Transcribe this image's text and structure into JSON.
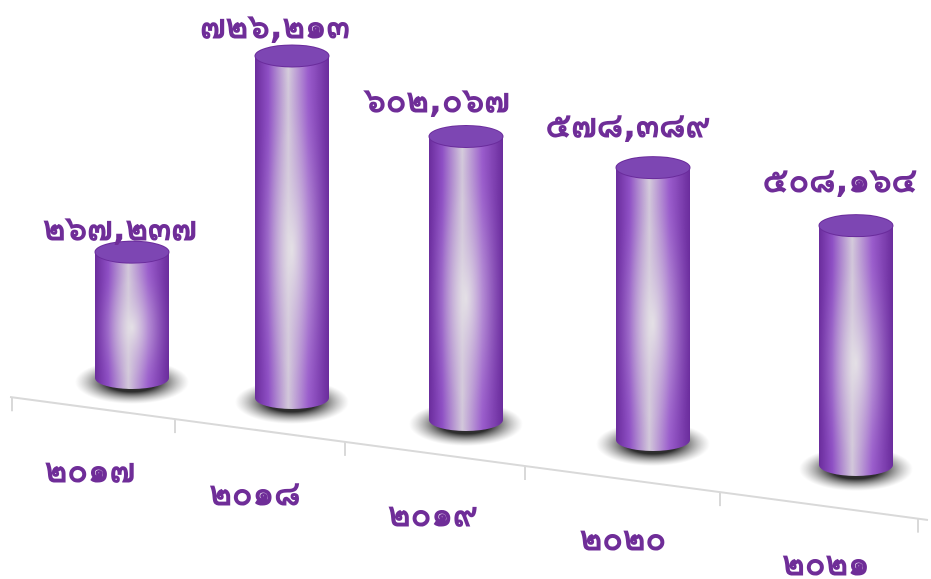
{
  "chart_data": {
    "type": "bar",
    "style": "3d-cylinder",
    "categories": [
      "๒๐๑๗",
      "๒๐๑๘",
      "๒๐๑๙",
      "๒๐๒๐",
      "๒๐๒๑"
    ],
    "values": [
      267237,
      726213,
      602067,
      578389,
      508164
    ],
    "value_labels": [
      "๒๖๗,๒๓๗",
      "๗๒๖,๒๑๓",
      "๖๐๒,๐๖๗",
      "๕๗๘,๓๘๙",
      "๕๐๘,๑๖๔"
    ],
    "title": "",
    "xlabel": "",
    "ylabel": "",
    "ylim": [
      0,
      726213
    ],
    "grid": false,
    "legend": "none",
    "colors": {
      "bar_dark": "#6a2c9c",
      "bar_mid": "#8e4fc4",
      "bar_light": "#d8d2dc",
      "bar_top": "#7d46b3",
      "label": "#6f2d98",
      "axis": "#d9d9d9"
    }
  }
}
